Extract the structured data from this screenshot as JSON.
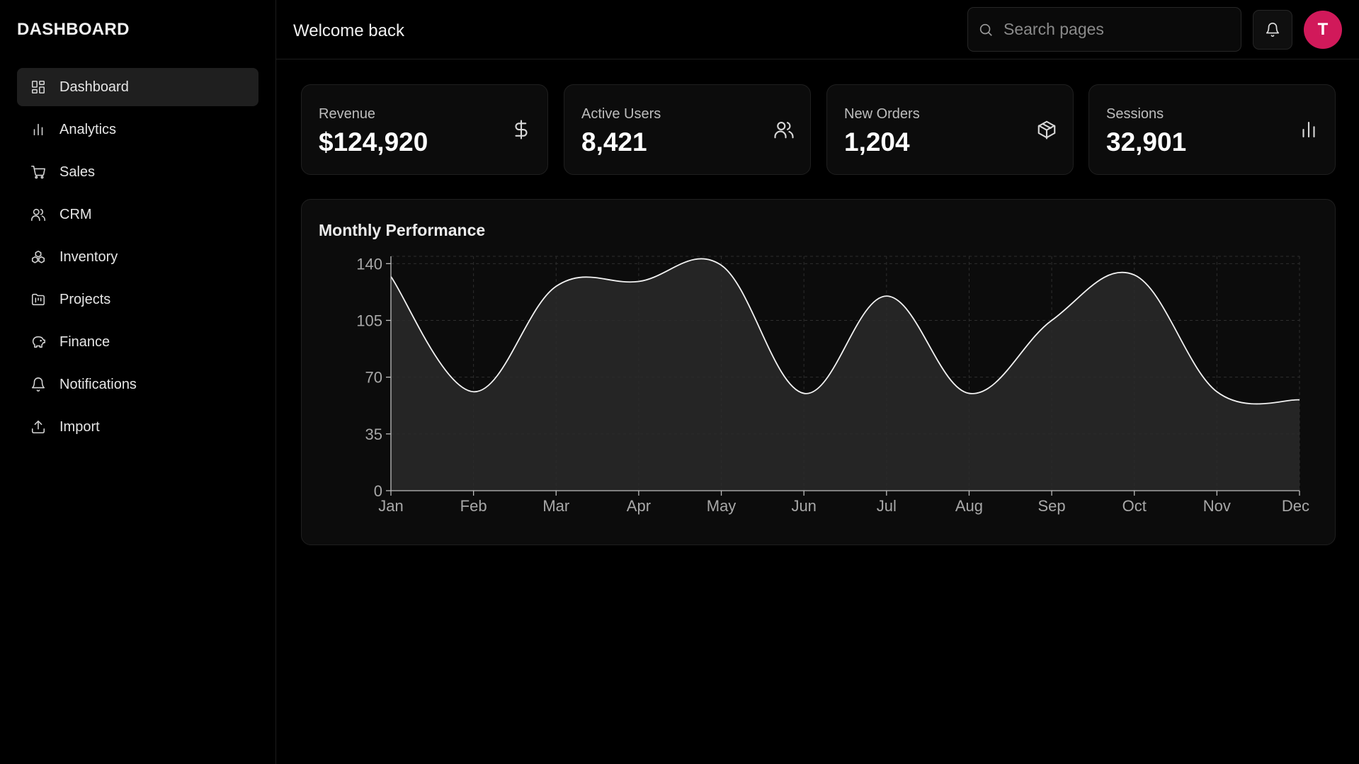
{
  "brand": "DASHBOARD",
  "sidebar": {
    "items": [
      {
        "label": "Dashboard",
        "icon": "dashboard-grid-icon",
        "active": true
      },
      {
        "label": "Analytics",
        "icon": "bar-chart-icon"
      },
      {
        "label": "Sales",
        "icon": "shopping-cart-icon"
      },
      {
        "label": "CRM",
        "icon": "users-icon"
      },
      {
        "label": "Inventory",
        "icon": "boxes-icon"
      },
      {
        "label": "Projects",
        "icon": "folder-kanban-icon"
      },
      {
        "label": "Finance",
        "icon": "piggy-bank-icon"
      },
      {
        "label": "Notifications",
        "icon": "bell-icon"
      },
      {
        "label": "Import",
        "icon": "upload-icon"
      }
    ]
  },
  "header": {
    "welcome": "Welcome back",
    "search_placeholder": "Search pages",
    "avatar_initial": "T",
    "avatar_color": "#d1195a"
  },
  "stats": [
    {
      "label": "Revenue",
      "value": "$124,920",
      "icon": "dollar-sign-icon"
    },
    {
      "label": "Active Users",
      "value": "8,421",
      "icon": "users-icon"
    },
    {
      "label": "New Orders",
      "value": "1,204",
      "icon": "package-icon"
    },
    {
      "label": "Sessions",
      "value": "32,901",
      "icon": "bar-chart-icon"
    }
  ],
  "chart_data": {
    "type": "area",
    "title": "Monthly Performance",
    "categories": [
      "Jan",
      "Feb",
      "Mar",
      "Apr",
      "May",
      "Jun",
      "Jul",
      "Aug",
      "Sep",
      "Oct",
      "Nov",
      "Dec"
    ],
    "series": [
      {
        "name": "Performance",
        "values": [
          132,
          61,
          126,
          129,
          139,
          60,
          120,
          60,
          105,
          133,
          61,
          56
        ]
      }
    ],
    "yticks": [
      0,
      35,
      70,
      105,
      140
    ],
    "ylim": [
      0,
      140
    ],
    "grid": true,
    "line_color": "#f2f2f2",
    "fill_color": "#2a2a2a"
  }
}
